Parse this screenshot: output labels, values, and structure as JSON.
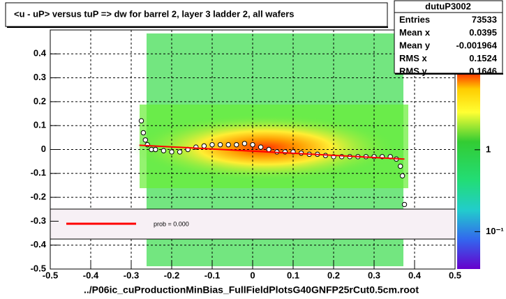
{
  "chart_data": {
    "type": "profile",
    "title": "<u - uP>       versus  tuP =>  dw for barrel 2, layer 3 ladder 2, all wafers",
    "x_label": "../P06ic_cuProductionMinBias_FullFieldPlotsG40GNFP25rCut0.5cm.root",
    "xlim": [
      -0.5,
      0.5
    ],
    "xticks": [
      -0.5,
      -0.4,
      -0.3,
      -0.2,
      -0.1,
      0,
      0.1,
      0.2,
      0.3,
      0.4,
      0.5
    ],
    "ylim": [
      -0.5,
      0.5
    ],
    "yticks": [
      -0.5,
      -0.4,
      -0.3,
      -0.2,
      -0.1,
      0,
      0.1,
      0.2,
      0.3,
      0.4
    ],
    "grid": true,
    "zlog": true,
    "zlim": [
      0.035,
      8.6
    ],
    "zticks": [
      1,
      {
        "value": 0.1,
        "label": "10⁻¹"
      }
    ],
    "stats": {
      "title": "dutuP3002",
      "rows": [
        {
          "label": "Entries",
          "value": 73533
        },
        {
          "label": "Mean x",
          "value": 0.0395
        },
        {
          "label": "Mean y",
          "value": -0.001964
        },
        {
          "label": "RMS x",
          "value": 0.1524
        },
        {
          "label": "RMS y",
          "value": 0.1646
        }
      ]
    },
    "series": [
      {
        "color": "#000000",
        "x": [
          -0.275,
          -0.27,
          -0.265,
          -0.26,
          -0.25,
          -0.24,
          -0.22,
          -0.2,
          -0.18,
          -0.16,
          -0.14,
          -0.12,
          -0.1,
          -0.08,
          -0.06,
          -0.04,
          -0.02,
          0,
          0.02,
          0.04,
          0.06,
          0.08,
          0.1,
          0.12,
          0.14,
          0.16,
          0.18,
          0.2,
          0.22,
          0.24,
          0.26,
          0.28,
          0.3,
          0.32,
          0.34,
          0.355,
          0.365,
          0.37,
          0.375
        ],
        "values": [
          0.12,
          0.07,
          0.04,
          0.02,
          0.0,
          0.0,
          -0.005,
          -0.01,
          -0.01,
          0.0,
          0.01,
          0.015,
          0.02,
          0.02,
          0.02,
          0.02,
          0.025,
          0.02,
          0.01,
          0.0,
          -0.01,
          -0.01,
          -0.01,
          -0.015,
          -0.02,
          -0.02,
          -0.025,
          -0.03,
          -0.03,
          -0.03,
          -0.03,
          -0.03,
          -0.03,
          -0.03,
          -0.03,
          -0.04,
          -0.07,
          -0.11,
          -0.23
        ]
      },
      {
        "name": "prob = 0.000",
        "color": "#ff0000",
        "x": [
          -0.28,
          0.375
        ],
        "values": [
          0.018,
          -0.04
        ]
      }
    ]
  }
}
